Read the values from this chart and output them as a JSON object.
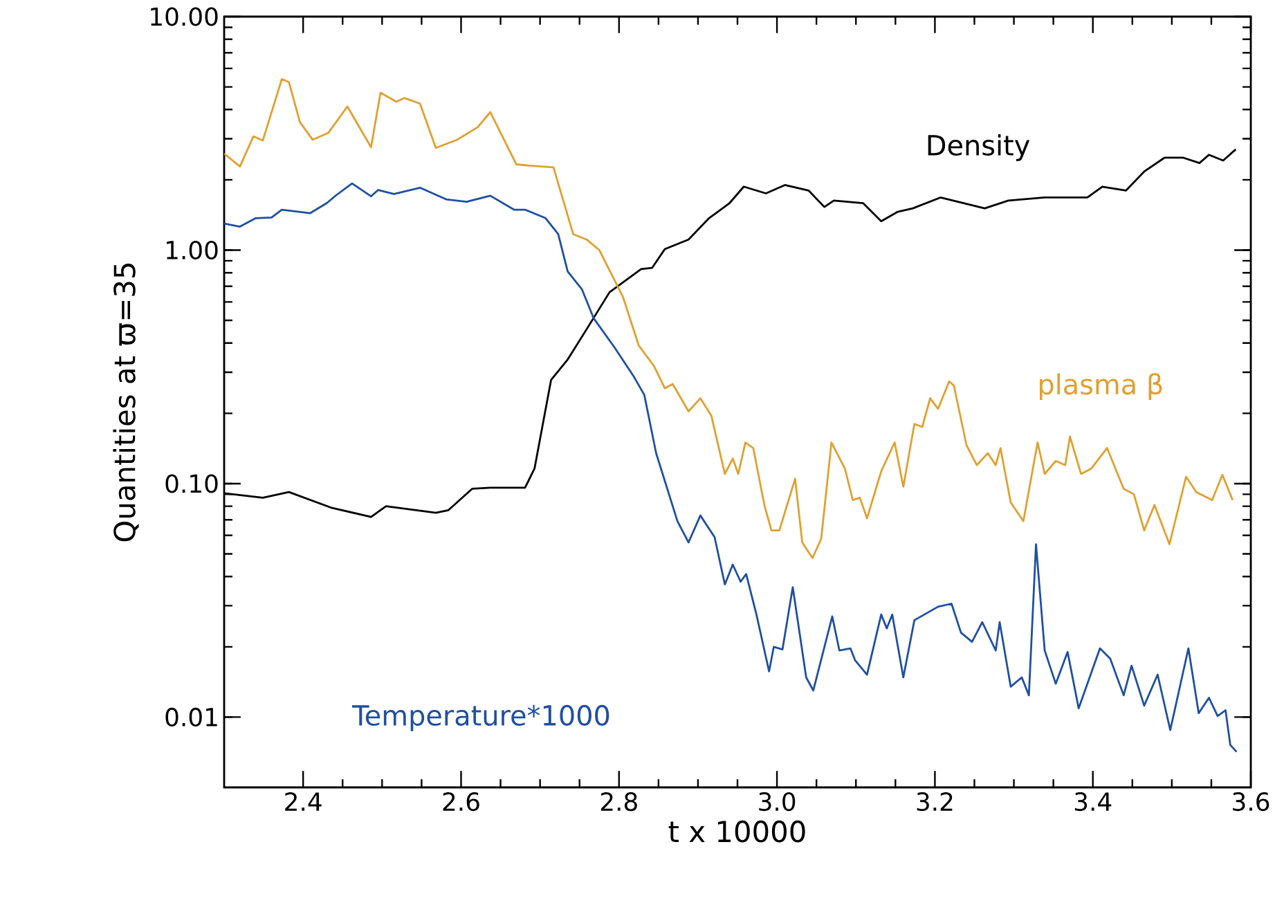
{
  "chart_data": {
    "type": "line",
    "xlabel": "t      x 10000",
    "ylabel": "Quantities at ϖ=35",
    "log": "y",
    "xlim": [
      2.3,
      3.6
    ],
    "ylim": [
      0.005,
      10
    ],
    "xticks": [
      2.4,
      2.6,
      2.8,
      {
        "value": 3.0,
        "label": "3.0"
      },
      3.2,
      3.4,
      3.6
    ],
    "yticks": [
      {
        "value": 0.01,
        "label": "0.01"
      },
      {
        "value": 0.1,
        "label": "0.10"
      },
      {
        "value": 1,
        "label": "1.00"
      },
      {
        "value": 10,
        "label": "10.00"
      }
    ],
    "grid": false,
    "legend": false,
    "marker": "none",
    "line_style": "solid",
    "series": [
      {
        "name": "Density",
        "color": "#000000",
        "x": [
          2.3,
          2.349,
          2.382,
          2.435,
          2.486,
          2.505,
          2.568,
          2.584,
          2.614,
          2.637,
          2.681,
          2.693,
          2.714,
          2.735,
          2.761,
          2.788,
          2.828,
          2.842,
          2.858,
          2.888,
          2.914,
          2.94,
          2.958,
          2.986,
          3.01,
          3.04,
          3.06,
          3.072,
          3.109,
          3.132,
          3.153,
          3.172,
          3.207,
          3.263,
          3.293,
          3.339,
          3.393,
          3.412,
          3.442,
          3.465,
          3.491,
          3.514,
          3.535,
          3.547,
          3.565,
          3.581
        ],
        "values": [
          0.091,
          0.087,
          0.092,
          0.079,
          0.072,
          0.08,
          0.075,
          0.077,
          0.095,
          0.096,
          0.096,
          0.116,
          0.278,
          0.34,
          0.47,
          0.66,
          0.83,
          0.84,
          1.01,
          1.11,
          1.37,
          1.59,
          1.87,
          1.75,
          1.9,
          1.8,
          1.53,
          1.63,
          1.59,
          1.33,
          1.46,
          1.51,
          1.68,
          1.51,
          1.63,
          1.68,
          1.68,
          1.87,
          1.8,
          2.17,
          2.49,
          2.49,
          2.36,
          2.56,
          2.42,
          2.7
        ]
      },
      {
        "name": "plasma β",
        "color": "#e0a030",
        "x": [
          2.3,
          2.32,
          2.337,
          2.349,
          2.373,
          2.382,
          2.396,
          2.412,
          2.432,
          2.456,
          2.486,
          2.498,
          2.518,
          2.528,
          2.548,
          2.568,
          2.595,
          2.621,
          2.637,
          2.67,
          2.687,
          2.717,
          2.742,
          2.759,
          2.775,
          2.805,
          2.825,
          2.844,
          2.858,
          2.868,
          2.888,
          2.903,
          2.917,
          2.934,
          2.944,
          2.951,
          2.96,
          2.97,
          2.984,
          2.993,
          3.003,
          3.023,
          3.032,
          3.045,
          3.056,
          3.069,
          3.086,
          3.096,
          3.105,
          3.114,
          3.132,
          3.149,
          3.16,
          3.174,
          3.184,
          3.194,
          3.204,
          3.218,
          3.224,
          3.24,
          3.253,
          3.267,
          3.277,
          3.283,
          3.296,
          3.312,
          3.33,
          3.339,
          3.353,
          3.365,
          3.371,
          3.385,
          3.398,
          3.418,
          3.439,
          3.452,
          3.465,
          3.478,
          3.497,
          3.518,
          3.531,
          3.551,
          3.564,
          3.577
        ],
        "values": [
          2.59,
          2.28,
          3.07,
          2.95,
          5.4,
          5.24,
          3.53,
          2.97,
          3.18,
          4.12,
          2.76,
          4.72,
          4.32,
          4.48,
          4.24,
          2.74,
          2.97,
          3.36,
          3.9,
          2.33,
          2.3,
          2.26,
          1.17,
          1.11,
          1.0,
          0.63,
          0.39,
          0.32,
          0.256,
          0.267,
          0.204,
          0.232,
          0.195,
          0.11,
          0.128,
          0.11,
          0.15,
          0.142,
          0.081,
          0.063,
          0.063,
          0.105,
          0.056,
          0.048,
          0.058,
          0.15,
          0.116,
          0.085,
          0.087,
          0.071,
          0.113,
          0.15,
          0.097,
          0.18,
          0.175,
          0.232,
          0.209,
          0.274,
          0.263,
          0.146,
          0.12,
          0.135,
          0.12,
          0.142,
          0.083,
          0.069,
          0.15,
          0.11,
          0.125,
          0.12,
          0.159,
          0.11,
          0.116,
          0.142,
          0.095,
          0.09,
          0.063,
          0.081,
          0.055,
          0.107,
          0.092,
          0.085,
          0.109,
          0.085
        ]
      },
      {
        "name": "Temperature*1000",
        "color": "#1f4fa0",
        "x": [
          2.3,
          2.32,
          2.34,
          2.36,
          2.373,
          2.409,
          2.43,
          2.442,
          2.462,
          2.486,
          2.495,
          2.515,
          2.548,
          2.581,
          2.607,
          2.637,
          2.667,
          2.681,
          2.707,
          2.723,
          2.735,
          2.753,
          2.768,
          2.795,
          2.818,
          2.832,
          2.847,
          2.874,
          2.888,
          2.903,
          2.921,
          2.934,
          2.944,
          2.954,
          2.961,
          2.974,
          2.99,
          2.996,
          3.007,
          3.02,
          3.037,
          3.046,
          3.07,
          3.079,
          3.093,
          3.099,
          3.114,
          3.132,
          3.139,
          3.146,
          3.16,
          3.174,
          3.204,
          3.221,
          3.233,
          3.247,
          3.26,
          3.277,
          3.282,
          3.296,
          3.31,
          3.319,
          3.328,
          3.339,
          3.353,
          3.368,
          3.382,
          3.409,
          3.422,
          3.439,
          3.449,
          3.465,
          3.482,
          3.498,
          3.521,
          3.534,
          3.547,
          3.558,
          3.568,
          3.574,
          3.582
        ],
        "values": [
          1.3,
          1.26,
          1.37,
          1.38,
          1.49,
          1.44,
          1.59,
          1.72,
          1.93,
          1.7,
          1.81,
          1.74,
          1.85,
          1.65,
          1.61,
          1.71,
          1.49,
          1.49,
          1.37,
          1.17,
          0.81,
          0.68,
          0.51,
          0.38,
          0.29,
          0.24,
          0.135,
          0.069,
          0.056,
          0.073,
          0.059,
          0.037,
          0.045,
          0.038,
          0.041,
          0.0275,
          0.0157,
          0.02,
          0.0195,
          0.036,
          0.0148,
          0.013,
          0.027,
          0.0193,
          0.0197,
          0.0175,
          0.0152,
          0.0275,
          0.024,
          0.0275,
          0.0148,
          0.026,
          0.0297,
          0.0306,
          0.023,
          0.021,
          0.0255,
          0.0193,
          0.0255,
          0.0135,
          0.0148,
          0.0124,
          0.055,
          0.0193,
          0.0139,
          0.019,
          0.0109,
          0.0197,
          0.0178,
          0.0124,
          0.0166,
          0.0112,
          0.0152,
          0.0088,
          0.0197,
          0.0104,
          0.0121,
          0.0101,
          0.0107,
          0.0076,
          0.0071
        ]
      }
    ]
  }
}
